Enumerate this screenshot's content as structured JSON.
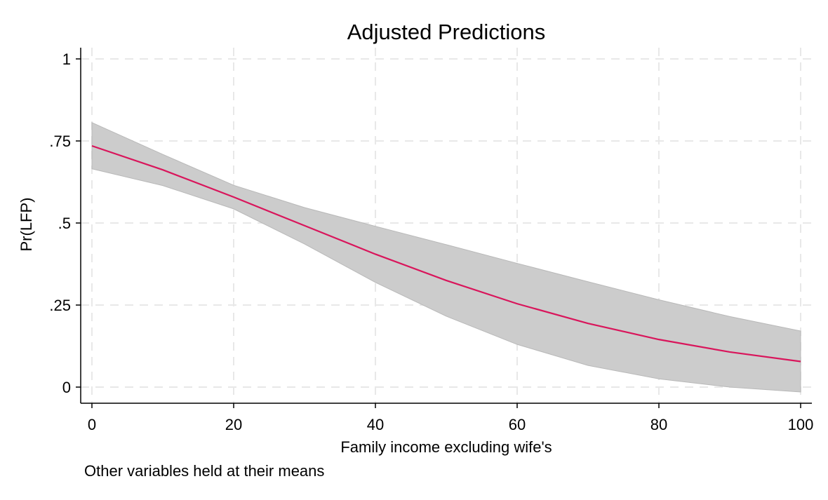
{
  "chart_data": {
    "type": "line",
    "title": "Adjusted Predictions",
    "xlabel": "Family income excluding wife's",
    "ylabel": "Pr(LFP)",
    "note": "Other variables held at their means",
    "xlim": [
      0,
      100
    ],
    "ylim": [
      0,
      1
    ],
    "x_ticks": [
      0,
      20,
      40,
      60,
      80,
      100
    ],
    "x_tick_labels": [
      "0",
      "20",
      "40",
      "60",
      "80",
      "100"
    ],
    "y_ticks": [
      0,
      0.25,
      0.5,
      0.75,
      1
    ],
    "y_tick_labels": [
      "0",
      ".25",
      ".5",
      ".75",
      "1"
    ],
    "grid": true,
    "x": [
      0,
      10,
      20,
      30,
      40,
      50,
      60,
      70,
      80,
      90,
      100
    ],
    "series": [
      {
        "values": [
          0.735,
          0.662,
          0.579,
          0.492,
          0.405,
          0.325,
          0.254,
          0.194,
          0.145,
          0.107,
          0.078
        ],
        "ci_upper": [
          0.806,
          0.709,
          0.615,
          0.547,
          0.49,
          0.434,
          0.377,
          0.321,
          0.266,
          0.215,
          0.171
        ],
        "ci_lower": [
          0.665,
          0.614,
          0.543,
          0.436,
          0.319,
          0.216,
          0.13,
          0.066,
          0.025,
          0.0,
          -0.015
        ],
        "color": "#d9155b",
        "band_color": "#cccccc"
      }
    ]
  }
}
